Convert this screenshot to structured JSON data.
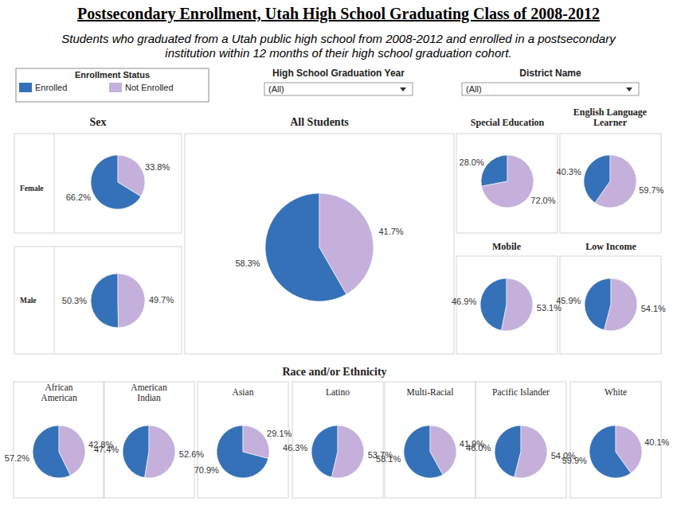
{
  "chart_data": {
    "type": "pie",
    "title": "Postsecondary Enrollment, Utah High School Graduating Class of 2008-2012",
    "subtitle": [
      "Students who graduated from a Utah public high school from 2008-2012 and enrolled in a postsecondary",
      "institution within 12 months of their high school graduation cohort."
    ],
    "legend": "top-left",
    "data_labels": true,
    "categories": [
      "Enrolled",
      "Not Enrolled"
    ],
    "colors": [
      "#3571b8",
      "#c4b0db"
    ],
    "series": [
      {
        "name": "Female",
        "values": [
          66.2,
          33.8
        ],
        "value_labels": [
          "66.2%",
          "33.8%"
        ]
      },
      {
        "name": "Male",
        "values": [
          50.3,
          49.7
        ],
        "value_labels": [
          "50.3%",
          "49.7%"
        ]
      },
      {
        "name": "All Students",
        "values": [
          58.3,
          41.7
        ],
        "value_labels": [
          "58.3%",
          "41.7%"
        ]
      },
      {
        "name": "Special Education",
        "values": [
          28.0,
          72.0
        ],
        "value_labels": [
          "28.0%",
          "72.0%"
        ]
      },
      {
        "name": "English Language Learner",
        "values": [
          40.3,
          59.7
        ],
        "value_labels": [
          "40.3%",
          "59.7%"
        ]
      },
      {
        "name": "Mobile",
        "values": [
          46.9,
          53.1
        ],
        "value_labels": [
          "46.9%",
          "53.1%"
        ]
      },
      {
        "name": "Low Income",
        "values": [
          45.9,
          54.1
        ],
        "value_labels": [
          "45.9%",
          "54.1%"
        ]
      },
      {
        "name": "African American",
        "values": [
          57.2,
          42.8
        ],
        "value_labels": [
          "57.2%",
          "42.8%"
        ]
      },
      {
        "name": "American Indian",
        "values": [
          47.4,
          52.6
        ],
        "value_labels": [
          "47.4%",
          "52.6%"
        ]
      },
      {
        "name": "Asian",
        "values": [
          70.9,
          29.1
        ],
        "value_labels": [
          "70.9%",
          "29.1%"
        ]
      },
      {
        "name": "Latino",
        "values": [
          46.3,
          53.7
        ],
        "value_labels": [
          "46.3%",
          "53.7%"
        ]
      },
      {
        "name": "Multi-Racial",
        "values": [
          58.1,
          41.9
        ],
        "value_labels": [
          "58.1%",
          "41.9%"
        ]
      },
      {
        "name": "Pacific Islander",
        "values": [
          46.0,
          54.0
        ],
        "value_labels": [
          "46.0%",
          "54.0%"
        ]
      },
      {
        "name": "White",
        "values": [
          59.9,
          40.1
        ],
        "value_labels": [
          "59.9%",
          "40.1%"
        ]
      }
    ]
  },
  "legend_title": "Enrollment Status",
  "filters": [
    {
      "label": "High School Graduation Year",
      "value": "(All)"
    },
    {
      "label": "District Name",
      "value": "(All)"
    }
  ],
  "section_titles": [
    "Sex",
    "Race and/or Ethnicity"
  ]
}
